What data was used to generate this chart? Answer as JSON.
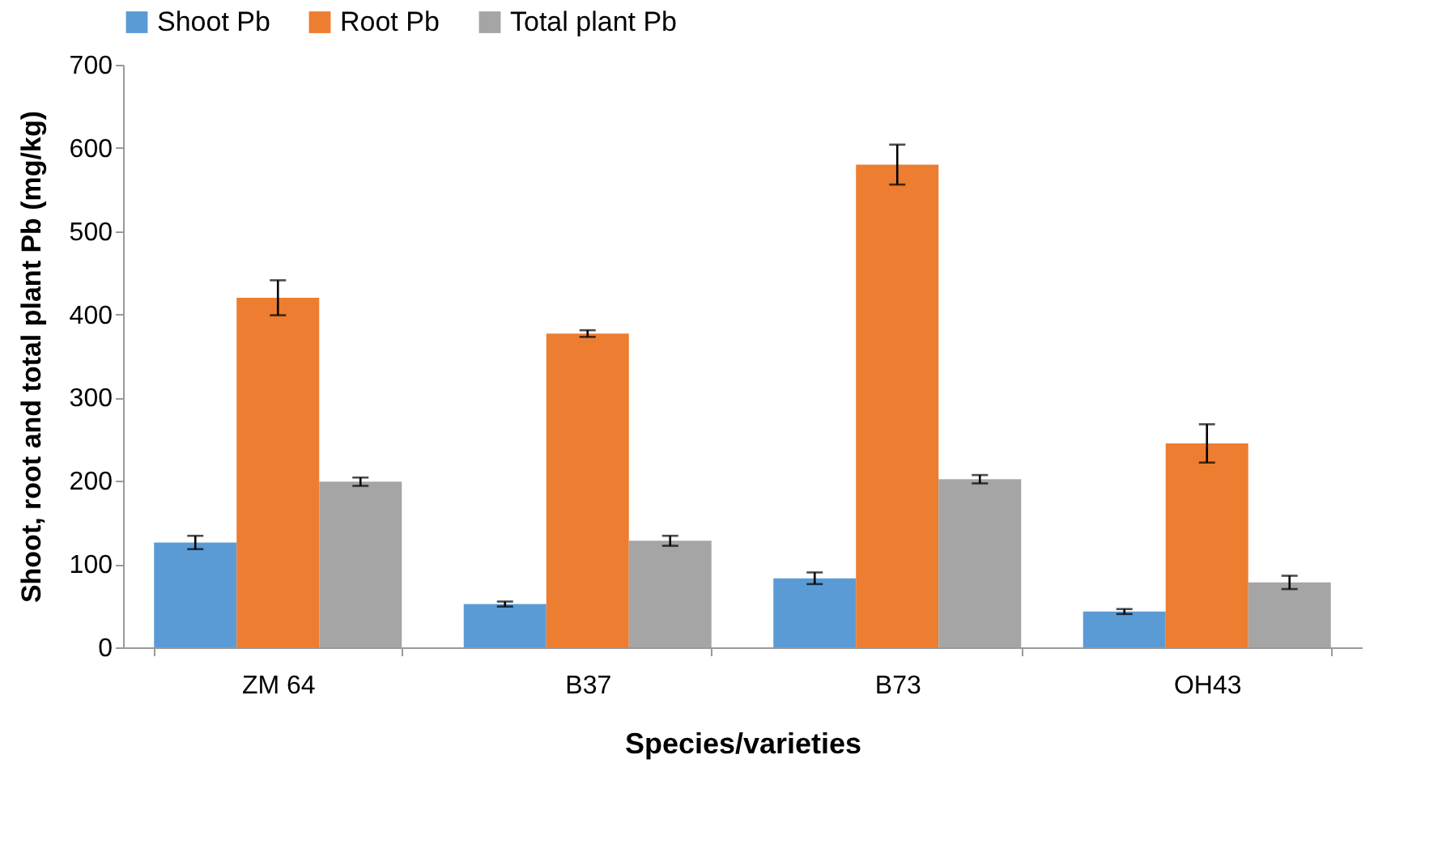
{
  "chart_data": {
    "type": "bar",
    "xlabel": "Species/varieties",
    "ylabel": "Shoot, root and total plant Pb (mg/kg)",
    "categories": [
      "ZM 64",
      "B37",
      "B73",
      "OH43"
    ],
    "series": [
      {
        "name": "Shoot Pb",
        "color": "#5b9bd5",
        "values": [
          126,
          52,
          83,
          43
        ],
        "errors": [
          8,
          3,
          7,
          3
        ]
      },
      {
        "name": "Root Pb",
        "color": "#ed7d31",
        "values": [
          420,
          377,
          580,
          245
        ],
        "errors": [
          21,
          4,
          24,
          23
        ]
      },
      {
        "name": "Total plant Pb",
        "color": "#a5a5a5",
        "values": [
          199,
          128,
          202,
          78
        ],
        "errors": [
          5,
          6,
          5,
          8
        ]
      }
    ],
    "ylim": [
      0,
      700
    ],
    "yticks": [
      0,
      100,
      200,
      300,
      400,
      500,
      600,
      700
    ],
    "grid": false,
    "legend": "top"
  }
}
